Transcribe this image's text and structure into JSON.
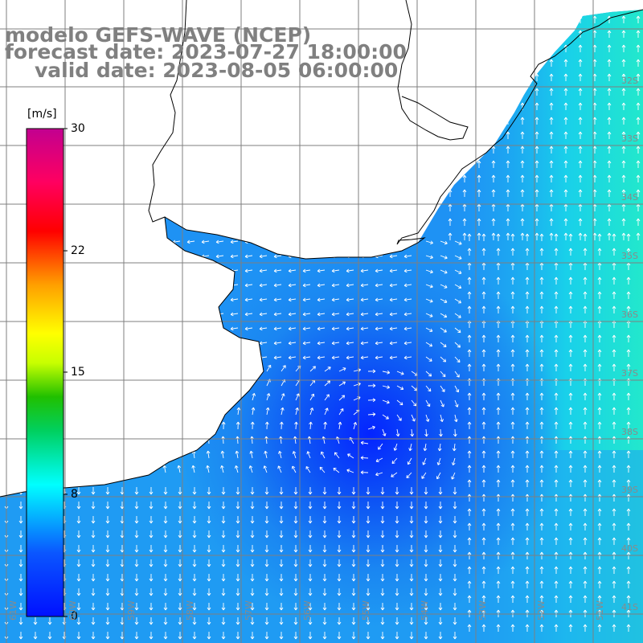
{
  "titles": {
    "line1": "modelo GEFS-WAVE (NCEP)",
    "line2": "forecast date: 2023-07-27 18:00:00",
    "line3": "valid date: 2023-08-05 06:00:00"
  },
  "colorbar": {
    "unit": "[m/s]",
    "labels": [
      "30",
      "22",
      "15",
      "8",
      "0"
    ],
    "range": [
      0,
      30
    ]
  },
  "axes": {
    "lat_labels": [
      "32S",
      "33S",
      "34S",
      "35S",
      "36S",
      "37S",
      "38S",
      "39S",
      "40S",
      "41S"
    ],
    "lon_labels": [
      "61W",
      "60W",
      "59W",
      "58W",
      "57W",
      "56W",
      "55W",
      "54W",
      "53W",
      "52W",
      "51W"
    ]
  },
  "colors": {
    "land": "#ffffff",
    "gridline": "#7f7f7f",
    "coastline": "#000000",
    "arrow": "#ffffff",
    "title_text": "#808080"
  }
}
